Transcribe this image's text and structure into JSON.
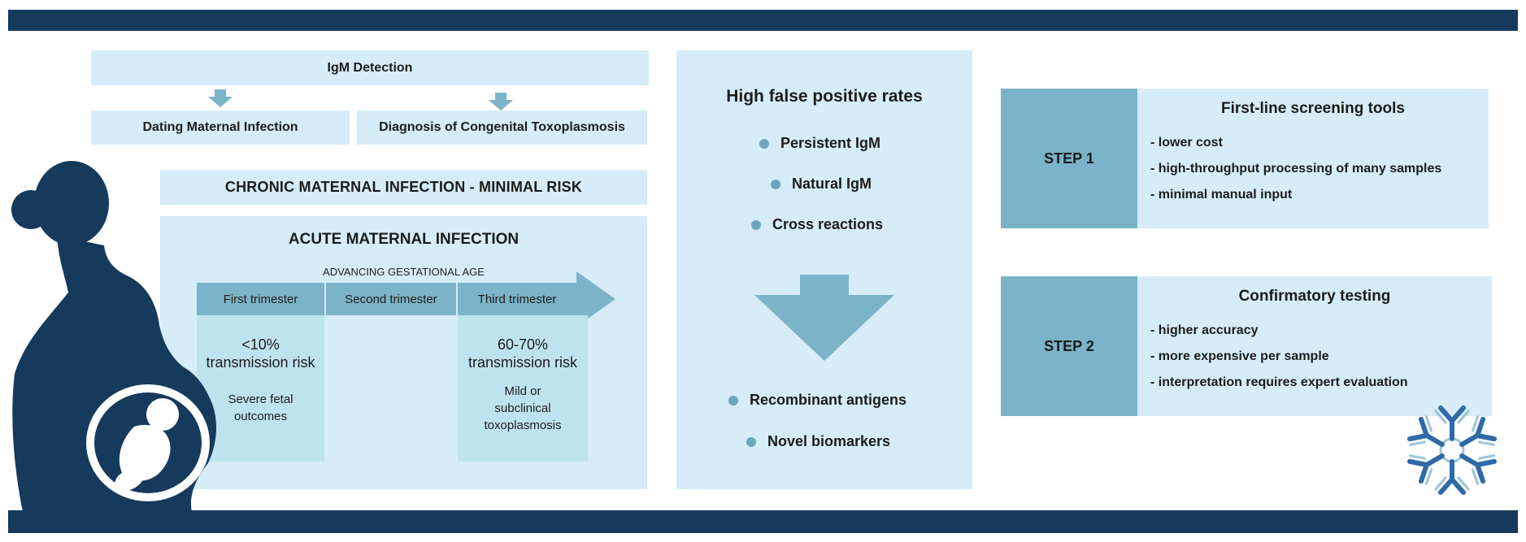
{
  "igm_detection": "IgM Detection",
  "dating_maternal_infection": "Dating Maternal Infection",
  "diagnosis_congenital": "Diagnosis of Congenital Toxoplasmosis",
  "chronic_infection": "CHRONIC MATERNAL INFECTION - MINIMAL RISK",
  "acute": {
    "title": "ACUTE MATERNAL INFECTION",
    "gestational_label": "ADVANCING GESTATIONAL AGE",
    "trimesters": [
      "First trimester",
      "Second trimester",
      "Third trimester"
    ],
    "first": {
      "risk": "<10%",
      "risk_line2": "transmission risk",
      "outcome": "Severe fetal",
      "outcome_line2": "outcomes"
    },
    "third": {
      "risk": "60-70%",
      "risk_line2": "transmission risk",
      "outcome": "Mild or",
      "outcome_line2": "subclinical",
      "outcome_line3": "toxoplasmosis"
    }
  },
  "false_positive": {
    "title": "High false positive rates",
    "causes": [
      "Persistent IgM",
      "Natural IgM",
      "Cross reactions"
    ],
    "solutions": [
      "Recombinant antigens",
      "Novel biomarkers"
    ]
  },
  "steps": [
    {
      "tag": "STEP 1",
      "heading": "First-line screening tools",
      "items": [
        "-  lower cost",
        "-  high-throughput processing of many samples",
        "-  minimal manual input"
      ]
    },
    {
      "tag": "STEP 2",
      "heading": "Confirmatory testing",
      "items": [
        "-  higher accuracy",
        "-  more expensive per sample",
        "-  interpretation requires expert evaluation"
      ]
    }
  ],
  "colors": {
    "navy": "#163a5c",
    "light_blue": "#d6ecf8",
    "teal": "#7bb3c8",
    "pale_teal": "#bfe3ee"
  }
}
